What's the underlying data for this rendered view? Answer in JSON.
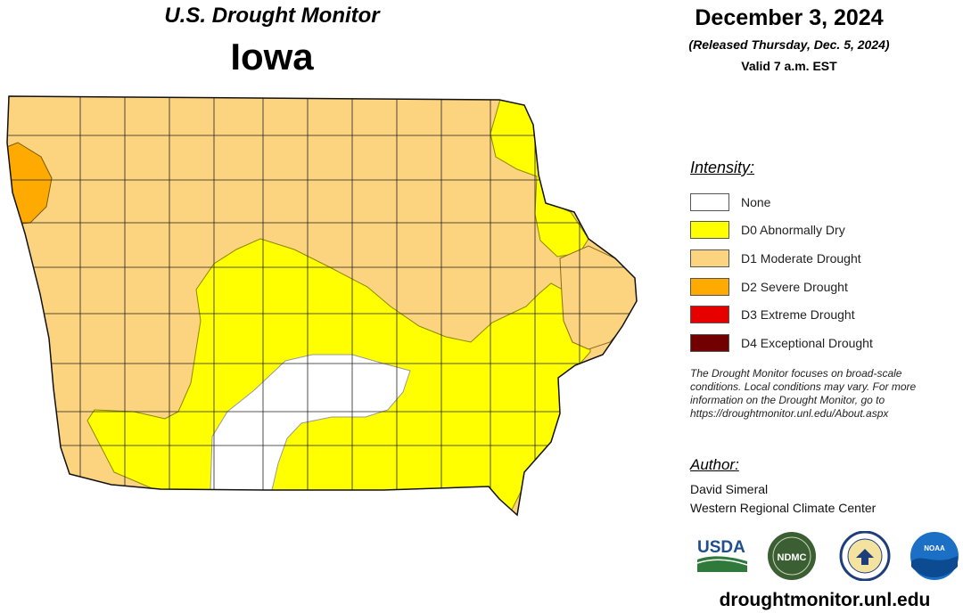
{
  "header": {
    "title": "U.S. Drought Monitor",
    "state": "Iowa",
    "date": "December 3, 2024",
    "released": "(Released Thursday, Dec. 5, 2024)",
    "valid": "Valid 7 a.m. EST"
  },
  "legend": {
    "title": "Intensity:",
    "items": [
      {
        "label": "None",
        "color": "#ffffff"
      },
      {
        "label": "D0 Abnormally Dry",
        "color": "#ffff00"
      },
      {
        "label": "D1 Moderate Drought",
        "color": "#fcd37f"
      },
      {
        "label": "D2 Severe Drought",
        "color": "#ffaa00"
      },
      {
        "label": "D3 Extreme Drought",
        "color": "#e60000"
      },
      {
        "label": "D4 Exceptional Drought",
        "color": "#730000"
      }
    ]
  },
  "note": {
    "lines": [
      "The Drought Monitor focuses on broad-scale",
      "conditions. Local conditions may vary. For more",
      "information on the Drought Monitor, go to",
      "https://droughtmonitor.unl.edu/About.aspx"
    ]
  },
  "author": {
    "title": "Author:",
    "name": "David Simeral",
    "org": "Western Regional Climate Center"
  },
  "logos": [
    {
      "name": "usda-logo",
      "text": "USDA"
    },
    {
      "name": "ndmc-logo",
      "text": "NDMC"
    },
    {
      "name": "doc-seal-logo"
    },
    {
      "name": "noaa-logo",
      "text": "NOAA"
    }
  ],
  "footer": {
    "url": "droughtmonitor.unl.edu"
  }
}
